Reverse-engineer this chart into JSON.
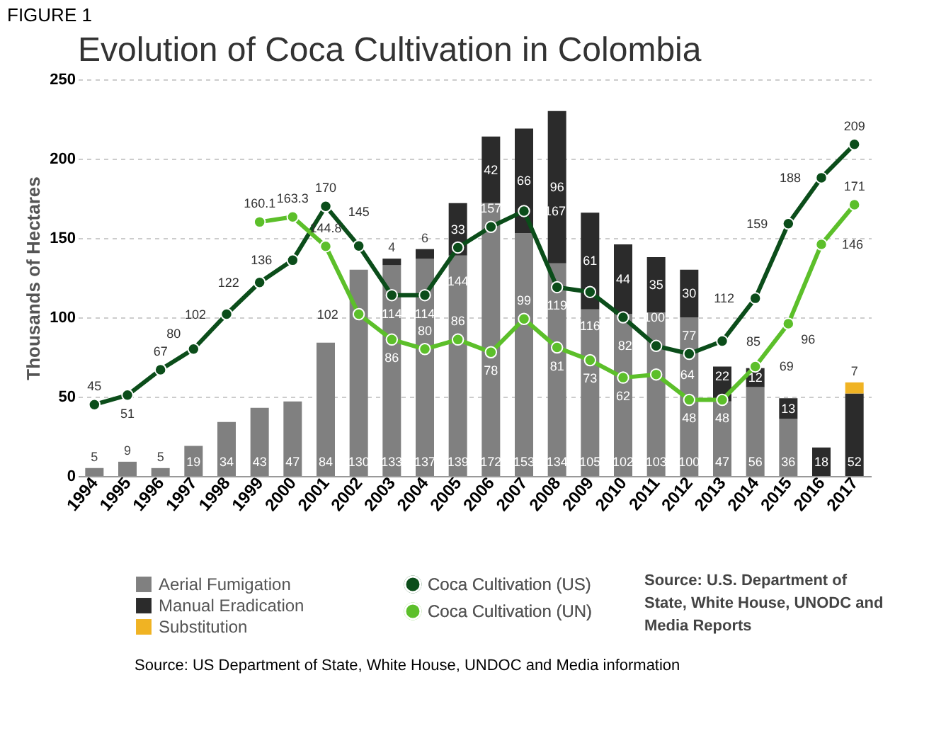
{
  "chart_data": {
    "type": "bar",
    "title": "Evolution of Coca Cultivation in Colombia",
    "ylabel": "Thousands of Hectares",
    "categories": [
      "1994",
      "1995",
      "1996",
      "1997",
      "1998",
      "1999",
      "2000",
      "2001",
      "2002",
      "2003",
      "2004",
      "2005",
      "2006",
      "2007",
      "2008",
      "2009",
      "2010",
      "2011",
      "2012",
      "2013",
      "2014",
      "2015",
      "2016",
      "2017"
    ],
    "stacked": true,
    "series": [
      {
        "name": "Aerial Fumigation",
        "color": "#808080",
        "values": [
          5,
          9,
          5,
          19,
          34,
          43,
          47,
          84,
          130,
          133,
          137,
          139,
          172,
          153,
          134,
          105,
          102,
          103,
          100,
          47,
          56,
          36,
          null,
          null
        ]
      },
      {
        "name": "Manual Eradication",
        "color": "#2b2b2b",
        "values": [
          null,
          null,
          null,
          null,
          null,
          null,
          null,
          null,
          null,
          4,
          6,
          33,
          42,
          66,
          96,
          61,
          44,
          35,
          30,
          22,
          12,
          13,
          18,
          52
        ]
      },
      {
        "name": "Substitution",
        "color": "#f0b323",
        "values": [
          null,
          null,
          null,
          null,
          null,
          null,
          null,
          null,
          null,
          null,
          null,
          null,
          null,
          null,
          null,
          null,
          null,
          null,
          null,
          null,
          null,
          null,
          null,
          7
        ]
      },
      {
        "name": "Coca Cultivation (US)",
        "type": "line",
        "color": "#0b4d1a",
        "values": [
          45,
          51,
          67,
          80,
          102,
          122,
          136,
          170,
          145,
          114,
          114,
          144,
          157,
          167,
          119,
          116,
          100,
          82,
          77,
          85,
          112,
          159,
          188,
          209
        ]
      },
      {
        "name": "Coca Cultivation (UN)",
        "type": "line",
        "color": "#5cbf2a",
        "values": [
          null,
          null,
          null,
          null,
          null,
          160.1,
          163.3,
          144.8,
          102,
          86,
          80,
          86,
          78,
          99,
          81,
          73,
          62,
          64,
          48,
          48,
          69,
          96,
          146,
          171
        ]
      }
    ],
    "ylim": [
      0,
      250
    ],
    "yticks": [
      0,
      50,
      100,
      150,
      200,
      250
    ],
    "grid": "y",
    "marker": "circle",
    "data_labels": true,
    "legend": "bottom",
    "annotations": [
      "FIGURE 1",
      "Source:  U.S. Department of State, White House, UNODC and Media Reports",
      "Source: US Department of State, White House, UNDOC and Media information"
    ]
  }
}
